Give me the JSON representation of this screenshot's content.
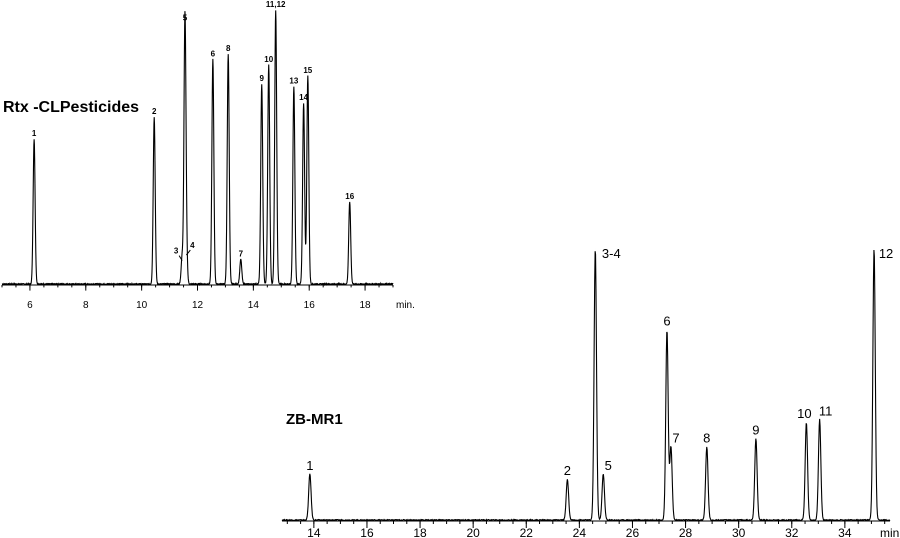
{
  "chart_data": [
    {
      "type": "line",
      "title": "Rtx  -CLPesticides",
      "xlabel": "min.",
      "xlim": [
        5,
        19
      ],
      "ylim": [
        0,
        100
      ],
      "xticks": [
        "6",
        "8",
        "10",
        "12",
        "14",
        "16",
        "18"
      ],
      "xtick_values": [
        6,
        8,
        10,
        12,
        14,
        16,
        18
      ],
      "peaks": [
        {
          "label": "1",
          "x": 6.15,
          "height": 53
        },
        {
          "label": "2",
          "x": 10.45,
          "height": 61
        },
        {
          "label": "3",
          "x": 11.45,
          "height": 10
        },
        {
          "label": "4",
          "x": 11.6,
          "height": 12
        },
        {
          "label": "5",
          "x": 11.55,
          "height": 95
        },
        {
          "label": "6",
          "x": 12.55,
          "height": 82
        },
        {
          "label": "8",
          "x": 13.1,
          "height": 84
        },
        {
          "label": "7",
          "x": 13.55,
          "height": 9
        },
        {
          "label": "9",
          "x": 14.3,
          "height": 73
        },
        {
          "label": "10",
          "x": 14.55,
          "height": 80
        },
        {
          "label": "11,12",
          "x": 14.8,
          "height": 100
        },
        {
          "label": "13",
          "x": 15.45,
          "height": 72
        },
        {
          "label": "14",
          "x": 15.8,
          "height": 66
        },
        {
          "label": "15",
          "x": 15.95,
          "height": 76
        },
        {
          "label": "16",
          "x": 17.45,
          "height": 30
        }
      ]
    },
    {
      "type": "line",
      "title": "ZB-MR1",
      "xlabel": "min",
      "xlim": [
        12.8,
        35.7
      ],
      "ylim": [
        0,
        100
      ],
      "xticks": [
        "14",
        "16",
        "18",
        "20",
        "22",
        "24",
        "26",
        "28",
        "30",
        "32",
        "34"
      ],
      "xtick_values": [
        14,
        16,
        18,
        20,
        22,
        24,
        26,
        28,
        30,
        32,
        34
      ],
      "peaks": [
        {
          "label": "1",
          "x": 13.85,
          "height": 17
        },
        {
          "label": "2",
          "x": 23.55,
          "height": 15
        },
        {
          "label": "3-4",
          "x": 24.6,
          "height": 100
        },
        {
          "label": "5",
          "x": 24.9,
          "height": 17
        },
        {
          "label": "6",
          "x": 27.3,
          "height": 70
        },
        {
          "label": "7",
          "x": 27.45,
          "height": 27
        },
        {
          "label": "8",
          "x": 28.8,
          "height": 27
        },
        {
          "label": "9",
          "x": 30.65,
          "height": 30
        },
        {
          "label": "10",
          "x": 32.55,
          "height": 36
        },
        {
          "label": "11",
          "x": 33.05,
          "height": 37
        },
        {
          "label": "12",
          "x": 35.1,
          "height": 100
        }
      ]
    }
  ]
}
